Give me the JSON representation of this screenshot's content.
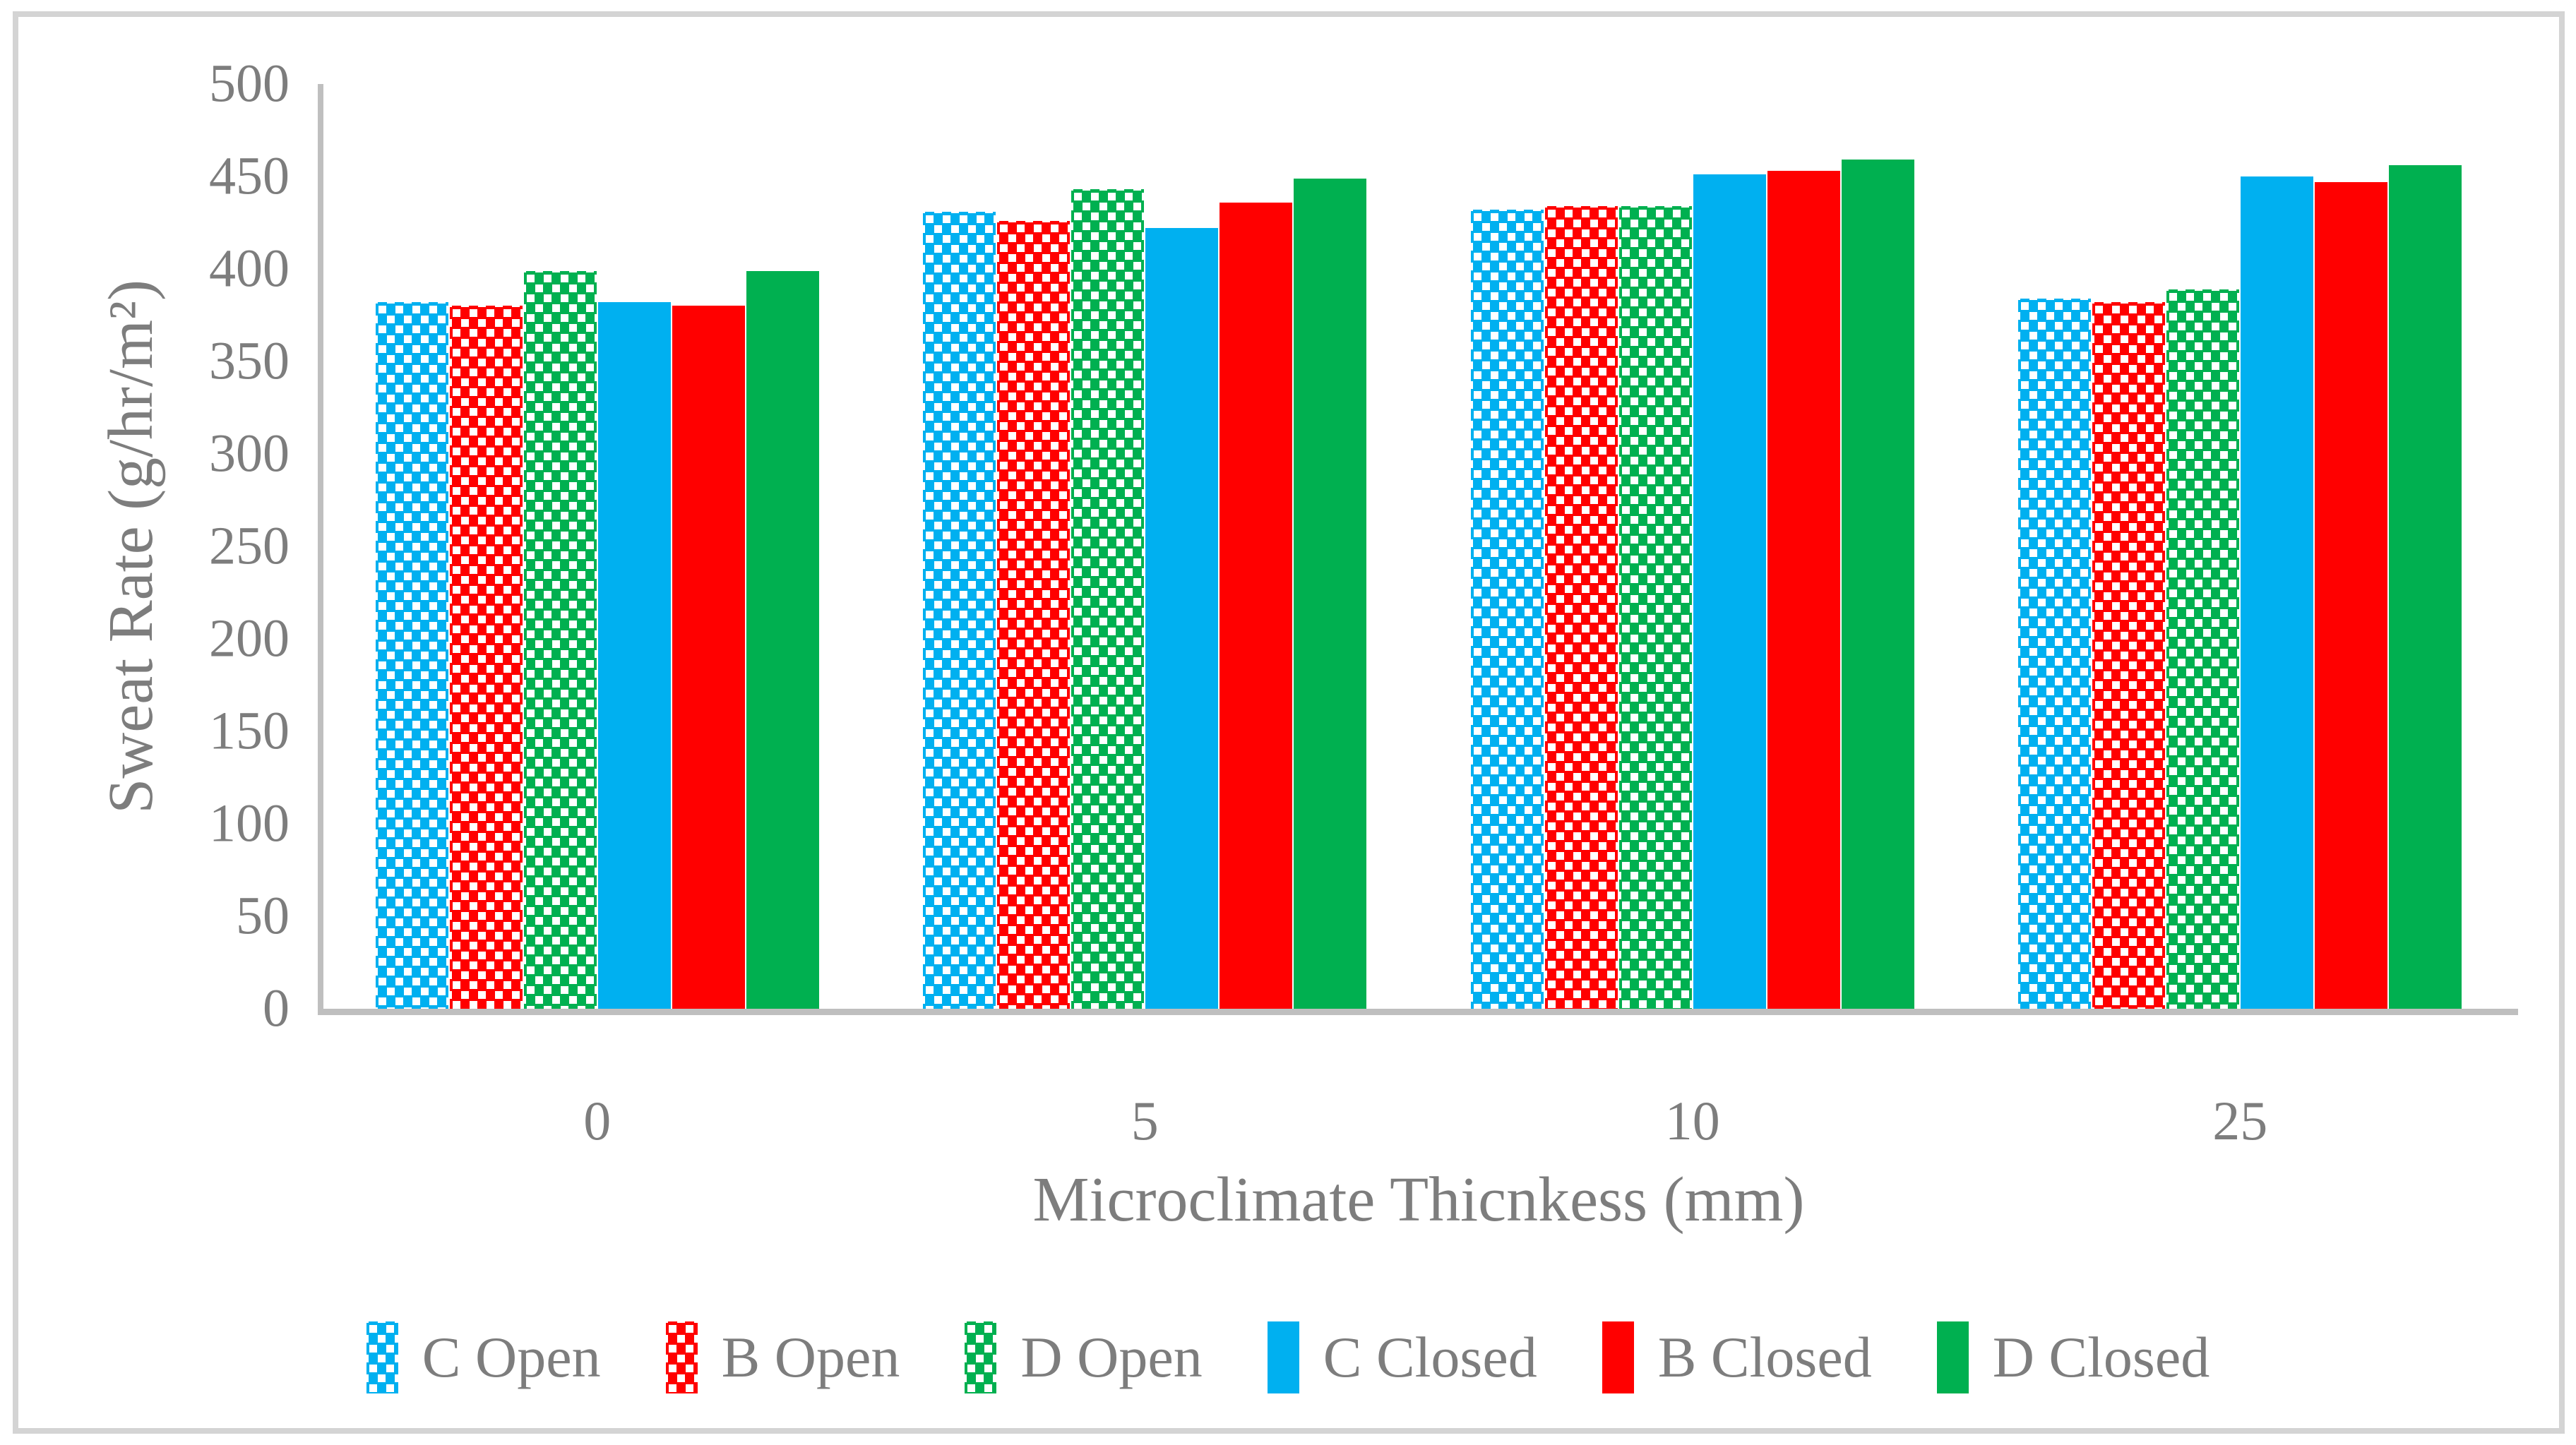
{
  "figure": {
    "background": "#ffffff",
    "border_color": "#d4d4d4",
    "text_color": "#7d7d7d",
    "axis_line_color": "#bfbfbf"
  },
  "chart_data": {
    "type": "bar",
    "title": "",
    "xlabel": "Microclimate Thicnkess (mm)",
    "ylabel": "Sweat Rate (g/hr/m²)",
    "categories": [
      "0",
      "5",
      "10",
      "25"
    ],
    "series": [
      {
        "name": "C Open",
        "color": "#00B0F0",
        "pattern": "dotted",
        "values": [
          382,
          431,
          432,
          384
        ]
      },
      {
        "name": "B Open",
        "color": "#FF0000",
        "pattern": "dotted",
        "values": [
          380,
          426,
          434,
          382
        ]
      },
      {
        "name": "D Open",
        "color": "#00B050",
        "pattern": "dotted",
        "values": [
          399,
          443,
          434,
          389
        ]
      },
      {
        "name": "C Closed",
        "color": "#00B0F0",
        "pattern": "solid",
        "values": [
          382,
          422,
          451,
          450
        ]
      },
      {
        "name": "B Closed",
        "color": "#FF0000",
        "pattern": "solid",
        "values": [
          380,
          436,
          453,
          447
        ]
      },
      {
        "name": "D Closed",
        "color": "#00B050",
        "pattern": "solid",
        "values": [
          399,
          449,
          459,
          456
        ]
      }
    ],
    "ylim": [
      0,
      500
    ],
    "yticks": [
      0,
      50,
      100,
      150,
      200,
      250,
      300,
      350,
      400,
      450,
      500
    ],
    "grid": false,
    "legend_position": "bottom",
    "dot_color": "#ffffff"
  }
}
